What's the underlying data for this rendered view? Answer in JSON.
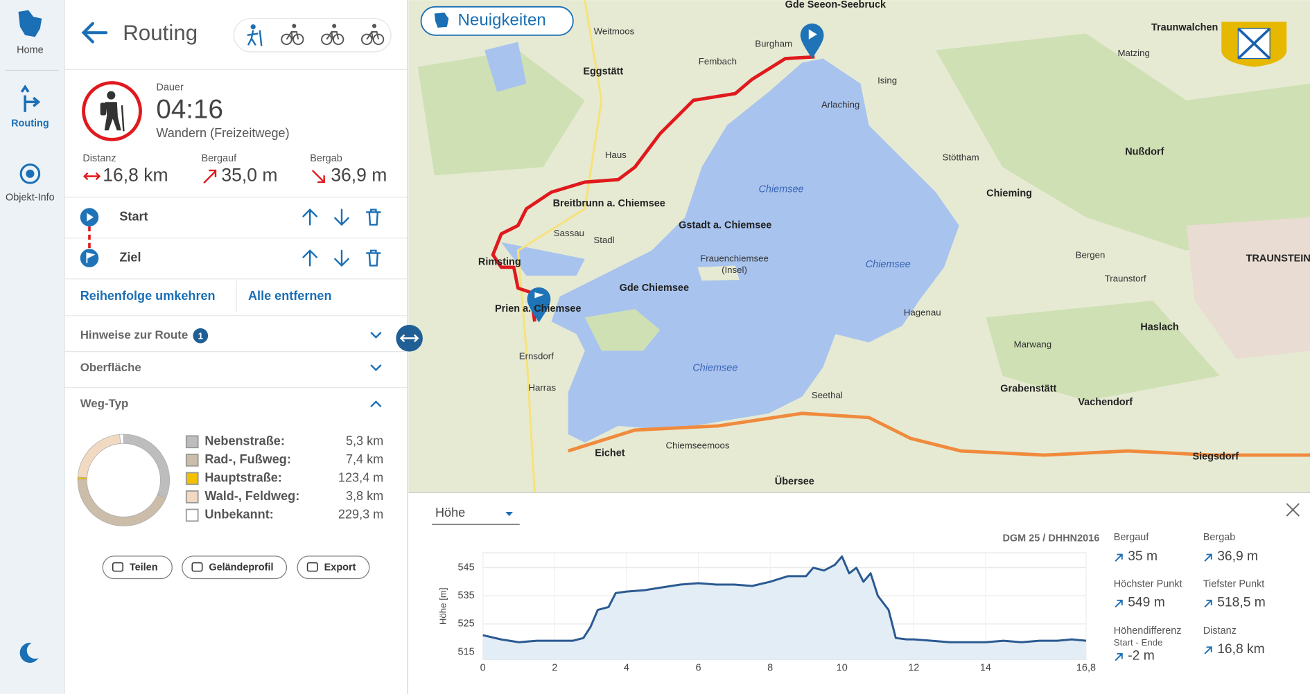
{
  "nav": {
    "items": [
      "Home",
      "Routing",
      "Objekt-Info"
    ]
  },
  "panel": {
    "title": "Routing",
    "duration_label": "Dauer",
    "duration": "04:16",
    "mode": "Wandern (Freizeitwege)",
    "stats": [
      {
        "label": "Distanz",
        "value": "16,8 km"
      },
      {
        "label": "Bergauf",
        "value": "35,0 m"
      },
      {
        "label": "Bergab",
        "value": "36,9 m"
      }
    ],
    "waypoints": [
      "Start",
      "Ziel"
    ],
    "actions": [
      "Reihenfolge umkehren",
      "Alle entfernen"
    ],
    "sections": [
      "Hinweise zur Route",
      "Oberfläche",
      "Weg-Typ"
    ],
    "hint_count": "1",
    "buttons": [
      "Teilen",
      "Geländeprofil",
      "Export"
    ]
  },
  "map": {
    "news_button": "Neuigkeiten",
    "labels": [
      "Gde Seeon-Seebruck",
      "Eggstätt",
      "Breitbrunn a. Chiemsee",
      "Gstadt a. Chiemsee",
      "Gde Chiemsee",
      "Prien a. Chiemsee",
      "Chiemsee",
      "Chiemsee",
      "Chiemsee",
      "Frauenchiemsee",
      "(Insel)",
      "Chieming",
      "TRAUNSTEIN",
      "Grabenstätt",
      "Vachendorf",
      "Siegsdorf",
      "Übersee",
      "Eichet",
      "Haslach",
      "Nußdorf",
      "Traunwalchen",
      "Stöttham",
      "Hagenau",
      "Seethal",
      "Ernsdorf",
      "Harras",
      "Rimsting",
      "Fembach",
      "Ising",
      "Arlaching",
      "Matzing",
      "Chiemseemoos",
      "Sassau",
      "Stadl",
      "Burgham",
      "Weitmoos",
      "Haus",
      "Traunstorf",
      "Bergen",
      "Marwang"
    ]
  },
  "profile": {
    "dropdown": "Höhe",
    "source": "DGM 25 / DHHN2016",
    "stats": [
      {
        "label": "Bergauf",
        "value": "35 m"
      },
      {
        "label": "Bergab",
        "value": "36,9 m"
      },
      {
        "label": "Höchster Punkt",
        "value": "549 m"
      },
      {
        "label": "Tiefster Punkt",
        "value": "518,5 m"
      },
      {
        "label": "Höhendifferenz",
        "sublabel": "Start - Ende",
        "value": "-2 m"
      },
      {
        "label": "Distanz",
        "value": "16,8 km"
      }
    ]
  },
  "chart_data": [
    {
      "type": "pie",
      "donut": true,
      "categories": [
        "Nebenstraße:",
        "Rad-, Fußweg:",
        "Hauptstraße:",
        "Wald-, Feldweg:",
        "Unbekannt:"
      ],
      "values": [
        5.3,
        7.4,
        0.1234,
        3.8,
        0.2293
      ],
      "value_labels": [
        "5,3 km",
        "7,4 km",
        "123,4 m",
        "3,8 km",
        "229,3 m"
      ],
      "colors": [
        "#bdbdbd",
        "#cbbda9",
        "#f5c000",
        "#f1dac1",
        "#ffffff"
      ]
    },
    {
      "type": "line",
      "y_label": "Höhe [m]",
      "x": [
        0,
        0.5,
        1,
        1.5,
        2,
        2.5,
        2.8,
        3,
        3.2,
        3.5,
        3.7,
        4,
        4.5,
        5,
        5.5,
        6,
        6.5,
        7,
        7.5,
        8,
        8.5,
        9,
        9.2,
        9.5,
        9.8,
        10,
        10.2,
        10.4,
        10.6,
        10.8,
        11,
        11.3,
        11.5,
        11.8,
        12,
        12.5,
        13,
        13.5,
        14,
        14.5,
        15,
        15.5,
        16,
        16.4,
        16.8
      ],
      "values": [
        521,
        519.5,
        518.5,
        519,
        519,
        519,
        520,
        524,
        530,
        531,
        536,
        536.5,
        537,
        538,
        539,
        539.5,
        539,
        539,
        538.5,
        540,
        542,
        542,
        545,
        544,
        546,
        549,
        543,
        545,
        540,
        543,
        535,
        530,
        520,
        519.5,
        519.5,
        519,
        518.5,
        518.5,
        518.5,
        519,
        518.5,
        519,
        519,
        519.5,
        519
      ],
      "color": "#2b5a92",
      "fill": "#e3edf5",
      "xlim": [
        0,
        16.8
      ],
      "ylim": [
        512.3,
        550.3
      ],
      "xticks": [
        0,
        2,
        4,
        6,
        8,
        10,
        12,
        14,
        {
          "value": 16.8,
          "label": "16,8"
        }
      ],
      "yticks": [
        515,
        525,
        535,
        545
      ],
      "grid": true
    }
  ]
}
